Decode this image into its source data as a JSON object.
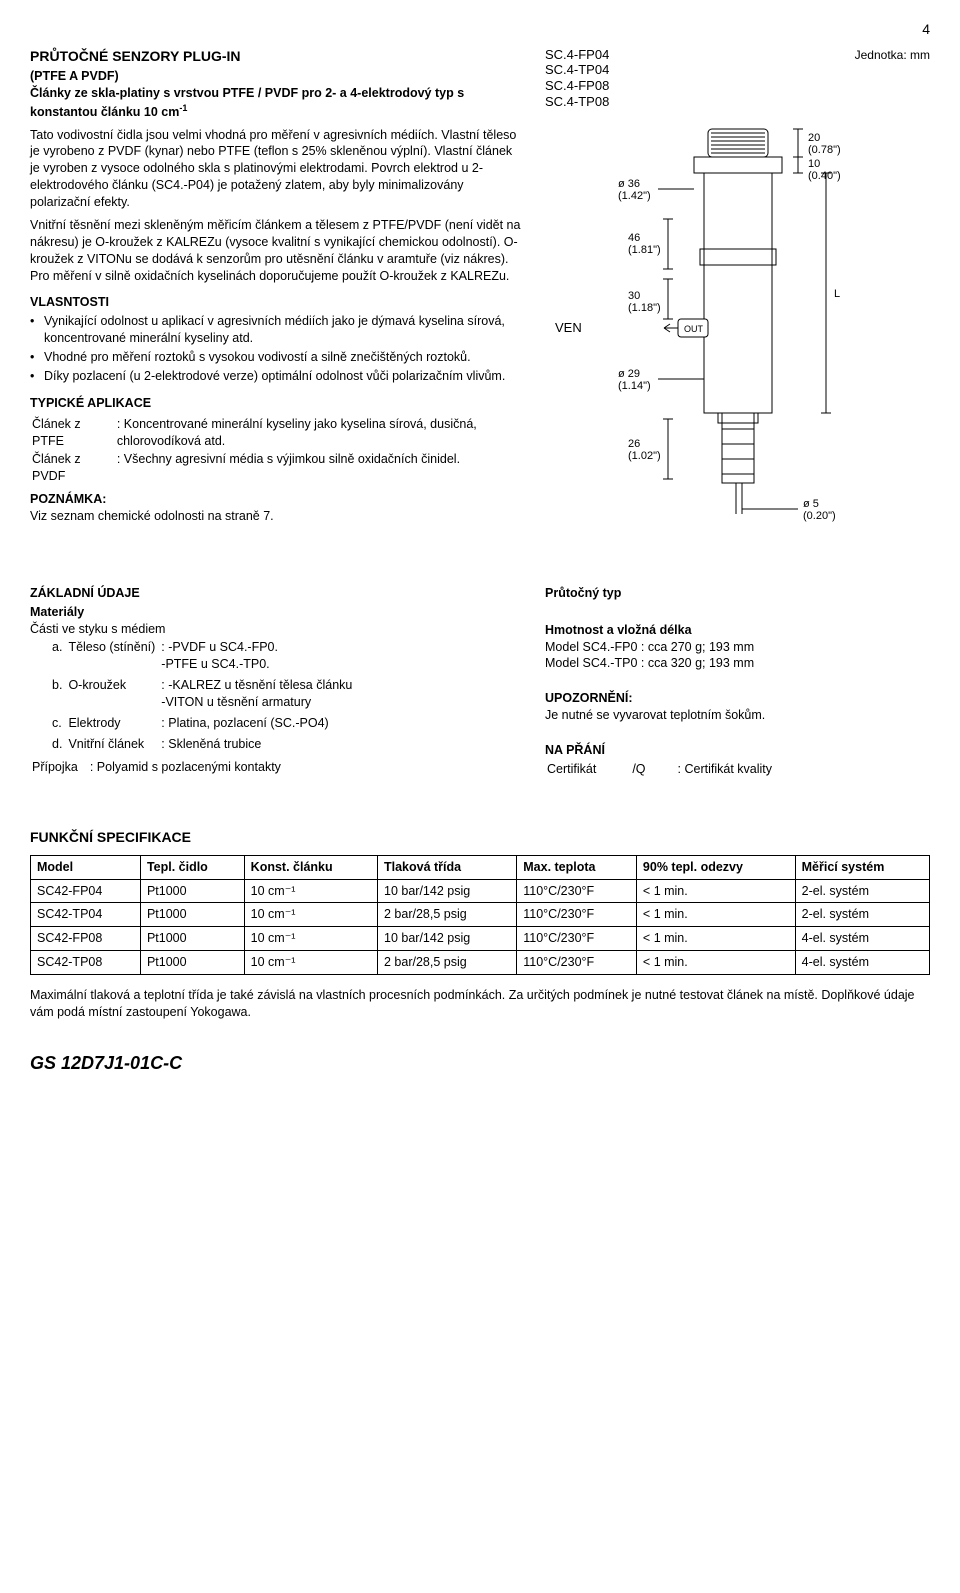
{
  "pageNumber": "4",
  "title": "PRŮTOČNÉ SENZORY PLUG-IN",
  "subtitle": "(PTFE A PVDF)",
  "sidebar": {
    "models": [
      "SC.4-FP04",
      "SC.4-TP04",
      "SC.4-FP08",
      "SC.4-TP08"
    ],
    "unitLabel": "Jednotka: mm",
    "venLabel": "VEN",
    "dims": {
      "d36": "ø 36",
      "d36in": "(1.42\")",
      "d29": "ø 29",
      "d29in": "(1.14\")",
      "d5": "ø 5",
      "d5in": "(0.20\")",
      "h20": "20",
      "h20in": "(0.78\")",
      "h10": "10",
      "h10in": "(0.40\")",
      "h46": "46",
      "h46in": "(1.81\")",
      "h30": "30",
      "h30in": "(1.18\")",
      "h26": "26",
      "h26in": "(1.02\")",
      "Llabel": "L"
    }
  },
  "intro": {
    "p1a": "Články ze skla-platiny s vrstvou PTFE / PVDF pro 2- a 4-elektrodový typ s konstantou článku 10 cm",
    "p1sup": "-1",
    "p2": "Tato vodivostní čidla jsou velmi vhodná pro měření v agresivních médiích. Vlastní těleso je vyrobeno z PVDF (kynar) nebo PTFE (teflon s 25% skleněnou výplní). Vlastní článek je vyroben z vysoce odolného skla s platinovými elektrodami. Povrch elektrod u 2-elektrodového článku (SC4.-P04) je potažený zlatem, aby byly minimalizovány polarizační efekty.",
    "p3": "Vnitřní těsnění mezi skleněným měřicím článkem a tělesem z PTFE/PVDF (není vidět na nákresu) je O-kroužek z KALREZu (vysoce kvalitní s vynikající chemickou odolností). O-kroužek z VITONu se dodává k senzorům pro utěsnění článku v aramtuře (viz nákres). Pro měření v silně oxidačních kyselinách doporučujeme použít O-kroužek z KALREZu."
  },
  "vlastnosti": {
    "head": "VLASNTOSTI",
    "items": [
      "Vynikající odolnost u aplikací v agresivních médiích jako je dýmavá kyselina sírová, koncentrované minerální kyseliny atd.",
      "Vhodné pro měření roztoků s vysokou vodivostí a silně znečištěných roztoků.",
      "Díky pozlacení (u 2-elektrodové verze) optimální odolnost vůči polarizačním vlivům."
    ]
  },
  "aplikace": {
    "head": "TYPICKÉ APLIKACE",
    "rows": [
      {
        "k": "Článek z PTFE",
        "v": ": Koncentrované minerální kyseliny jako kyselina sírová, dusičná, chlorovodíková atd."
      },
      {
        "k": "Článek z PVDF",
        "v": ": Všechny agresivní média s výjimkou silně oxidačních činidel."
      }
    ],
    "noteHead": "POZNÁMKA:",
    "note": "Viz seznam chemické odolnosti na straně 7."
  },
  "zakladni": {
    "head": "ZÁKLADNÍ ÚDAJE",
    "materialy": "Materiály",
    "casti": "Části ve styku s médiem",
    "rows": [
      {
        "i": "a.",
        "k": "Těleso (stínění)",
        "v": ": -PVDF u SC4.-FP0.\n-PTFE u SC4.-TP0."
      },
      {
        "i": "b.",
        "k": "O-kroužek",
        "v": ": -KALREZ u těsnění tělesa článku\n-VITON u těsnění armatury"
      },
      {
        "i": "c.",
        "k": "Elektrody",
        "v": ": Platina, pozlacení (SC.-PO4)"
      },
      {
        "i": "d.",
        "k": "Vnitřní článek",
        "v": ": Skleněná trubice"
      }
    ],
    "pripojkaK": "Přípojka",
    "pripojkaV": ": Polyamid s pozlacenými kontakty"
  },
  "prutocny": {
    "head": "Průtočný typ",
    "hmotnostHead": "Hmotnost a vložná délka",
    "lines": [
      "Model SC4.-FP0 : cca 270 g; 193 mm",
      "Model SC4.-TP0 : cca 320 g; 193 mm"
    ],
    "upozHead": "UPOZORNĚNÍ:",
    "upoz": "Je nutné se vyvarovat teplotním šokům.",
    "praniHead": "NA PŘÁNÍ",
    "praniK": "Certifikát",
    "praniQ": "/Q",
    "praniV": ": Certifikát kvality"
  },
  "spec": {
    "head": "FUNKČNÍ SPECIFIKACE",
    "headers": [
      "Model",
      "Tepl. čidlo",
      "Konst. článku",
      "Tlaková třída",
      "Max. teplota",
      "90% tepl. odezvy",
      "Měřicí systém"
    ],
    "rows": [
      [
        "SC42-FP04",
        "Pt1000",
        "10 cm⁻¹",
        "10 bar/142 psig",
        "110°C/230°F",
        "< 1 min.",
        "2-el. systém"
      ],
      [
        "SC42-TP04",
        "Pt1000",
        "10 cm⁻¹",
        "2 bar/28,5 psig",
        "110°C/230°F",
        "< 1 min.",
        "2-el. systém"
      ],
      [
        "SC42-FP08",
        "Pt1000",
        "10 cm⁻¹",
        "10 bar/142 psig",
        "110°C/230°F",
        "< 1 min.",
        "4-el. systém"
      ],
      [
        "SC42-TP08",
        "Pt1000",
        "10 cm⁻¹",
        "2 bar/28,5 psig",
        "110°C/230°F",
        "< 1 min.",
        "4-el. systém"
      ]
    ],
    "note": "Maximální tlaková a teplotní třída je také závislá na vlastních procesních podmínkách. Za určitých podmínek je nutné testovat článek na místě. Doplňkové údaje vám podá místní zastoupení Yokogawa."
  },
  "footerCode": "GS 12D7J1-01C-C",
  "colors": {
    "text": "#000000",
    "bg": "#ffffff",
    "line": "#000000"
  }
}
